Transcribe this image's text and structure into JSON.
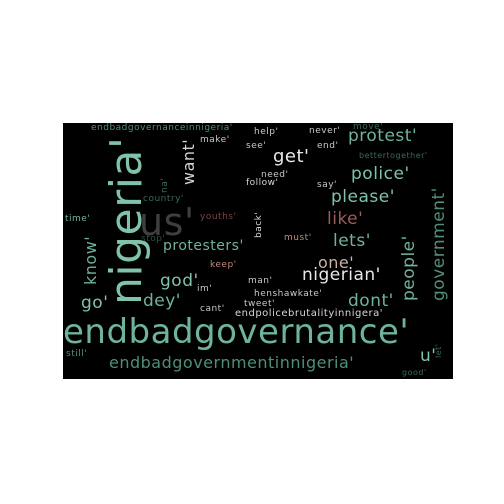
{
  "word_cloud": {
    "background_color": "#000000",
    "words": [
      {
        "text": "endbadgovernance'",
        "color": "#6fb39a"
      },
      {
        "text": "nigeria'",
        "color": "#7fc3a8"
      },
      {
        "text": "us'",
        "color": "#3f3f3f"
      },
      {
        "text": "endbadgovernmentinnigeria'",
        "color": "#4f8f7a"
      },
      {
        "text": "endbadgovernanceinnigeria'",
        "color": "#4f8f7a"
      },
      {
        "text": "get'",
        "color": "#e8e8e8"
      },
      {
        "text": "want'",
        "color": "#cfd6d3"
      },
      {
        "text": "protest'",
        "color": "#6fb39a"
      },
      {
        "text": "police'",
        "color": "#7fc3a8"
      },
      {
        "text": "please'",
        "color": "#7fc3a8"
      },
      {
        "text": "like'",
        "color": "#9b5e58"
      },
      {
        "text": "lets'",
        "color": "#6fb39a"
      },
      {
        "text": "government'",
        "color": "#4f8f7a"
      },
      {
        "text": "people'",
        "color": "#6fb39a"
      },
      {
        "text": "one'",
        "color": "#c9b4a8"
      },
      {
        "text": "nigerian'",
        "color": "#e8e8e8"
      },
      {
        "text": "dont'",
        "color": "#6fb39a"
      },
      {
        "text": "god'",
        "color": "#7fc3a8"
      },
      {
        "text": "dey'",
        "color": "#6fb39a"
      },
      {
        "text": "go'",
        "color": "#7fc3a8"
      },
      {
        "text": "know'",
        "color": "#6fb39a"
      },
      {
        "text": "protesters'",
        "color": "#6fb39a"
      },
      {
        "text": "u'",
        "color": "#7fc3a8"
      },
      {
        "text": "endpolicebrutalityinnigera'",
        "color": "#d8d8d8"
      },
      {
        "text": "youths'",
        "color": "#7a4444"
      },
      {
        "text": "country'",
        "color": "#3a6a5a"
      },
      {
        "text": "stop'",
        "color": "#2f4f45"
      },
      {
        "text": "time'",
        "color": "#6fb39a"
      },
      {
        "text": "na'",
        "color": "#3a6a5a"
      },
      {
        "text": "make'",
        "color": "#c9c9c9"
      },
      {
        "text": "help'",
        "color": "#c9c9c9"
      },
      {
        "text": "never'",
        "color": "#c9c9c9"
      },
      {
        "text": "move'",
        "color": "#3a6a5a"
      },
      {
        "text": "see'",
        "color": "#c9c9c9"
      },
      {
        "text": "end'",
        "color": "#c9c9c9"
      },
      {
        "text": "need'",
        "color": "#c9c9c9"
      },
      {
        "text": "bettertogether'",
        "color": "#3a6a5a"
      },
      {
        "text": "follow'",
        "color": "#d8d8d8"
      },
      {
        "text": "say'",
        "color": "#c9c9c9"
      },
      {
        "text": "back'",
        "color": "#d8d8d8"
      },
      {
        "text": "must'",
        "color": "#c28a7e"
      },
      {
        "text": "keep'",
        "color": "#c28a7e"
      },
      {
        "text": "man'",
        "color": "#c9c9c9"
      },
      {
        "text": "im'",
        "color": "#c9c9c9"
      },
      {
        "text": "henshawkate'",
        "color": "#c9c9c9"
      },
      {
        "text": "cant'",
        "color": "#c9c9c9"
      },
      {
        "text": "tweet'",
        "color": "#c9c9c9"
      },
      {
        "text": "still'",
        "color": "#4f8f7a"
      },
      {
        "text": "let'",
        "color": "#3a6a5a"
      },
      {
        "text": "good'",
        "color": "#3a6a5a"
      }
    ]
  }
}
